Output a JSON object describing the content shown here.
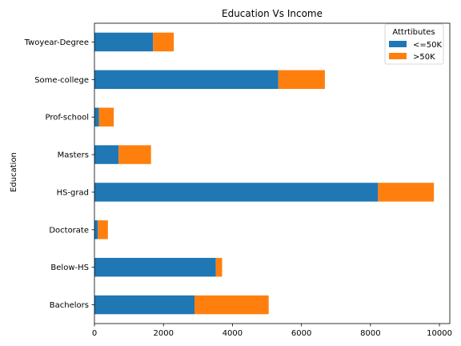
{
  "chart_data": {
    "type": "bar",
    "orientation": "horizontal",
    "stacked": true,
    "title": "Education Vs Income",
    "xlabel": "",
    "ylabel": "Education",
    "xlim": [
      0,
      10300
    ],
    "xticks": [
      0,
      2000,
      4000,
      6000,
      8000,
      10000
    ],
    "xtick_labels": [
      "0",
      "2000",
      "4000",
      "6000",
      "8000",
      "10000"
    ],
    "grid": false,
    "legend": {
      "title": "Attrtibutes",
      "placement": "top-right"
    },
    "categories": [
      "Bachelors",
      "Below-HS",
      "Doctorate",
      "HS-grad",
      "Masters",
      "Prof-school",
      "Some-college",
      "Twoyear-Degree"
    ],
    "series": [
      {
        "name": "<=50K",
        "color": "#1f77b4",
        "values": [
          2900,
          3520,
          100,
          8220,
          700,
          130,
          5330,
          1700
        ]
      },
      {
        "name": ">50K",
        "color": "#ff7f0e",
        "values": [
          2150,
          180,
          290,
          1620,
          940,
          430,
          1350,
          600
        ]
      }
    ]
  }
}
